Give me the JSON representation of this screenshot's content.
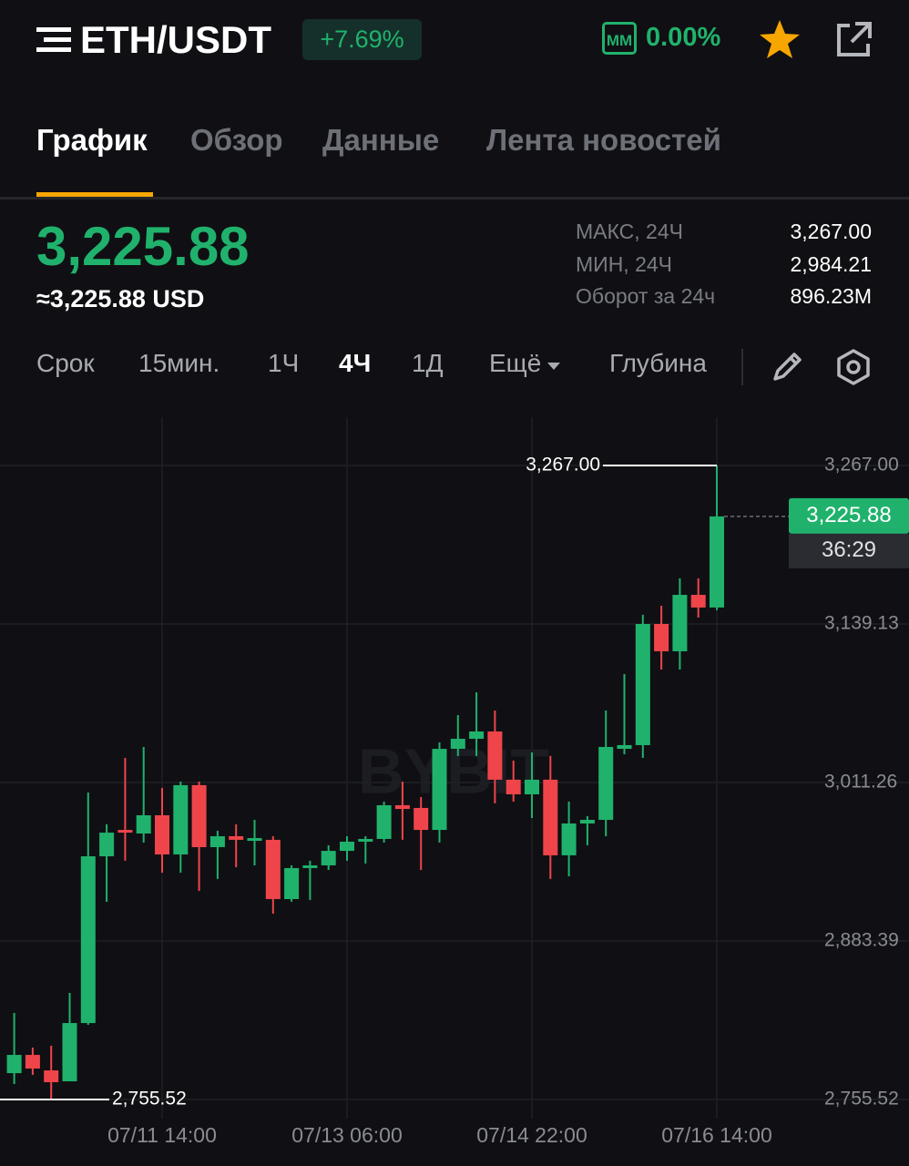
{
  "header": {
    "pair": "ETH/USDT",
    "change": "+7.69%",
    "mm_badge": "ММ",
    "mm_value": "0.00%"
  },
  "tabs": [
    "График",
    "Обзор",
    "Данные",
    "Лента новостей"
  ],
  "price": {
    "last": "3,225.88",
    "usd": "≈3,225.88 USD"
  },
  "stats": [
    {
      "label": "МАКС, 24Ч",
      "value": "3,267.00"
    },
    {
      "label": "МИН, 24Ч",
      "value": "2,984.21"
    },
    {
      "label": "Оборот за 24ч",
      "value": "896.23M"
    }
  ],
  "timeframes": [
    "Срок",
    "15мин.",
    "1Ч",
    "4Ч",
    "1Д",
    "Ещё"
  ],
  "depth": "Глубина",
  "chart_data": {
    "type": "candlestick",
    "watermark": "BYBIT",
    "categories": [
      null,
      null,
      null,
      null,
      null,
      null,
      null,
      null,
      "07/11 14:00",
      null,
      null,
      null,
      null,
      null,
      null,
      null,
      null,
      null,
      "07/13 06:00",
      null,
      null,
      null,
      null,
      null,
      null,
      null,
      null,
      null,
      "07/14 22:00",
      null,
      null,
      null,
      null,
      null,
      null,
      null,
      null,
      null,
      "07/16 14:00"
    ],
    "open": [
      2776.8,
      2791.5,
      2779.0,
      2770.2,
      2817.2,
      2951.7,
      2973.0,
      2970.1,
      2984.8,
      2953.2,
      3009.1,
      2959.1,
      2967.9,
      2964.2,
      2965.0,
      2917.2,
      2942.2,
      2944.4,
      2956.1,
      2963.5,
      2965.7,
      2992.9,
      2990.7,
      2973.0,
      3038.4,
      3046.5,
      3052.4,
      3013.5,
      3001.7,
      3013.5,
      2952.5,
      2978.2,
      2981.1,
      3038.4,
      3041.4,
      3139.1,
      3117.1,
      3162.6,
      3152.4
    ],
    "high": [
      2825.3,
      2797.4,
      2798.9,
      2841.5,
      3003.2,
      2977.5,
      3031.1,
      3039.9,
      3006.9,
      3012.0,
      3012.0,
      2972.3,
      2977.5,
      2981.1,
      2967.9,
      2944.4,
      2948.1,
      2960.6,
      2967.9,
      2967.9,
      2995.8,
      3012.0,
      2999.5,
      3043.6,
      3065.6,
      3084.0,
      3069.3,
      3028.9,
      3035.5,
      3032.6,
      2995.8,
      2984.1,
      3069.3,
      3098.7,
      3146.5,
      3153.8,
      3175.9,
      3175.9,
      3267.0
    ],
    "low": [
      2768.0,
      2775.4,
      2755.52,
      2770.2,
      2815.8,
      2915.0,
      2948.1,
      2962.8,
      2938.5,
      2938.5,
      2923.8,
      2933.4,
      2942.9,
      2944.4,
      2905.4,
      2915.0,
      2916.5,
      2940.7,
      2948.1,
      2945.9,
      2962.8,
      2965.0,
      2940.7,
      2962.8,
      3032.6,
      3032.6,
      2994.4,
      2995.8,
      2982.6,
      2933.4,
      2935.6,
      2960.6,
      2967.9,
      3034.0,
      3031.1,
      3102.4,
      3102.4,
      3144.3,
      3150.2
    ],
    "close": [
      2791.5,
      2780.5,
      2769.5,
      2817.2,
      2951.7,
      2970.8,
      2970.8,
      2984.8,
      2953.2,
      3009.1,
      2959.1,
      2967.9,
      2965.0,
      2966.4,
      2917.2,
      2942.2,
      2944.4,
      2956.1,
      2963.5,
      2965.7,
      2992.9,
      2989.9,
      2973.0,
      3038.4,
      3046.5,
      3052.4,
      3013.5,
      3001.7,
      3013.5,
      2952.5,
      2978.2,
      2981.1,
      3039.9,
      3041.4,
      3139.1,
      3117.1,
      3162.6,
      3152.4,
      3225.88
    ],
    "up_color": "#20b26c",
    "down_color": "#ef454a",
    "ylim": [
      2740.1,
      3305.9
    ],
    "yticks": [
      {
        "value": 2755.52,
        "label": "2,755.52"
      },
      {
        "value": 2883.39,
        "label": "2,883.39"
      },
      {
        "value": 3011.26,
        "label": "3,011.26"
      },
      {
        "value": 3139.13,
        "label": "3,139.13"
      },
      {
        "value": 3267.0,
        "label": "3,267.00"
      }
    ],
    "grid": true,
    "high_marker": {
      "value": 3267.0,
      "label": "3,267.00"
    },
    "low_marker": {
      "value": 2755.52,
      "label": "2,755.52"
    },
    "last_price": {
      "value": 3225.88,
      "label": "3,225.88"
    },
    "countdown": "36:29"
  }
}
